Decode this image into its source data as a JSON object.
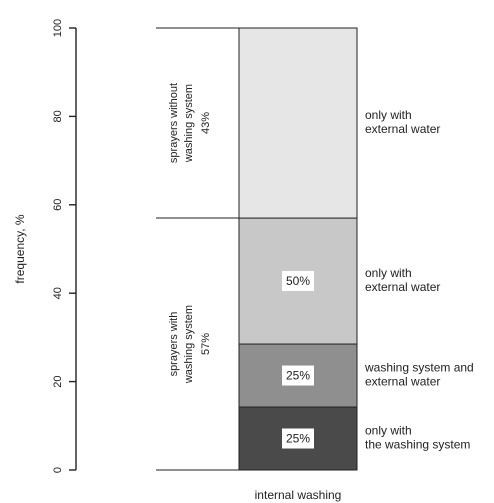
{
  "chart_data": {
    "type": "stacked-bar",
    "ylabel": "frequency, %",
    "xlabel": "internal washing",
    "ylim": [
      0,
      100
    ],
    "yticks": [
      0,
      20,
      40,
      60,
      80,
      100
    ],
    "y_tick_labels": [
      "0",
      "20",
      "40",
      "60",
      "80",
      "100"
    ],
    "groups": [
      {
        "label_lines": [
          "sprayers without",
          "washing system",
          "43%"
        ],
        "range": [
          57,
          100
        ]
      },
      {
        "label_lines": [
          "sprayers with",
          "washing system",
          "57%"
        ],
        "range": [
          0,
          57
        ]
      }
    ],
    "segments": [
      {
        "from": 0,
        "to": 14.25,
        "fill": "#4a4a4a",
        "value_label": "25%",
        "category_lines": [
          "only with",
          "the washing system"
        ]
      },
      {
        "from": 14.25,
        "to": 28.5,
        "fill": "#8f8f8f",
        "value_label": "25%",
        "category_lines": [
          "washing system and",
          "external water"
        ]
      },
      {
        "from": 28.5,
        "to": 57,
        "fill": "#c8c8c8",
        "value_label": "50%",
        "category_lines": [
          "only with",
          "external water"
        ]
      },
      {
        "from": 57,
        "to": 100,
        "fill": "#e6e6e6",
        "value_label": "",
        "category_lines": [
          "only with",
          "external water"
        ]
      }
    ],
    "colors": {
      "axis": "#222222",
      "dark": "#4a4a4a",
      "medium": "#8f8f8f",
      "light": "#c8c8c8",
      "lightest": "#e6e6e6"
    }
  }
}
